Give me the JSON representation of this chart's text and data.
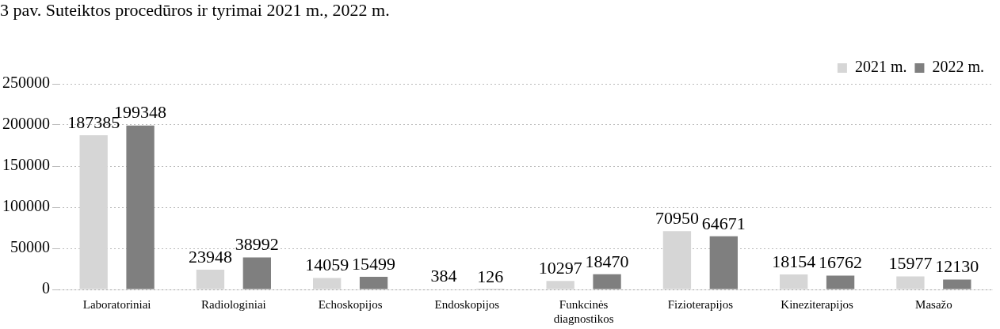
{
  "chart_data": {
    "type": "bar",
    "title": "3 pav. Suteiktos procedūros ir tyrimai 2021 m., 2022 m.",
    "categories": [
      "Laboratoriniai",
      "Radiologiniai",
      "Echoskopijos",
      "Endoskopijos",
      "Funkcinės diagnostikos",
      "Fizioterapijos",
      "Kineziterapijos",
      "Masažo"
    ],
    "series": [
      {
        "name": "2021 m.",
        "color": "#d6d6d6",
        "values": [
          187385,
          23948,
          14059,
          384,
          10297,
          70950,
          18154,
          15977
        ]
      },
      {
        "name": "2022 m.",
        "color": "#7f7f7f",
        "values": [
          199348,
          38992,
          15499,
          126,
          18470,
          64671,
          16762,
          12130
        ]
      }
    ],
    "ylim": [
      0,
      250000
    ],
    "yticks": [
      0,
      50000,
      100000,
      150000,
      200000,
      250000
    ],
    "grid": "y",
    "legend": "top right",
    "data_labels": true
  }
}
